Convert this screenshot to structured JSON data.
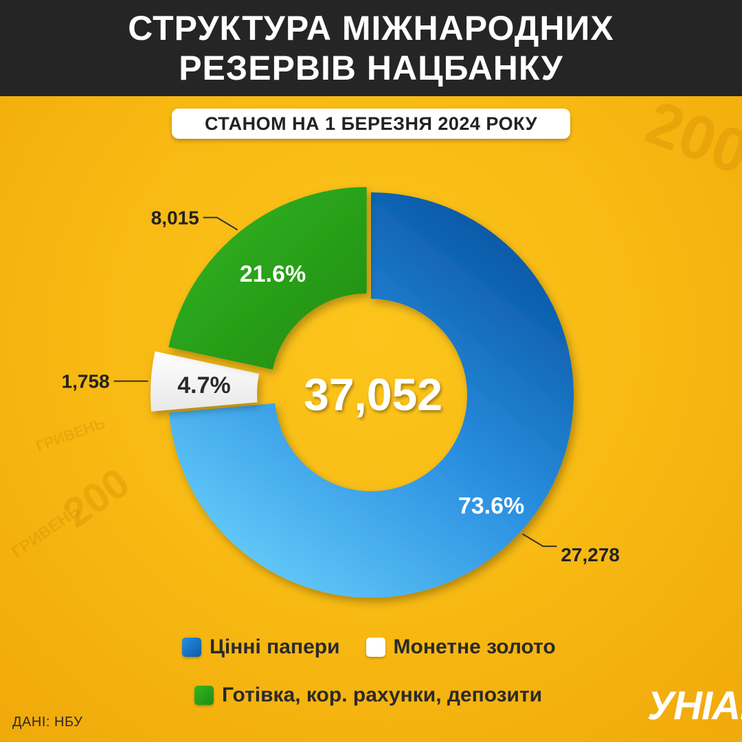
{
  "header": {
    "title_line1": "СТРУКТУРА МІЖНАРОДНИХ",
    "title_line2": "РЕЗЕРВІВ НАЦБАНКУ",
    "subtitle": "СТАНОМ НА 1 БЕРЕЗНЯ 2024 РОКУ"
  },
  "chart_data": {
    "type": "pie",
    "subtype": "donut",
    "total": "37,052",
    "series": [
      {
        "name": "Цінні папери",
        "value": 27278,
        "value_label": "27,278",
        "percent_label": "73.6%",
        "color": "#1d6fbd"
      },
      {
        "name": "Монетне золото",
        "value": 1758,
        "value_label": "1,758",
        "percent_label": "4.7%",
        "color": "#ffffff"
      },
      {
        "name": "Готівка, кор. рахунки, депозити",
        "value": 8015,
        "value_label": "8,015",
        "percent_label": "21.6%",
        "color": "#2ca81b"
      }
    ]
  },
  "legend": {
    "row1": [
      {
        "label": "Цінні папери",
        "color": "#1c74c8"
      },
      {
        "label": "Монетне золото",
        "color": "#ffffff"
      }
    ],
    "row2": [
      {
        "label": "Готівка, кор. рахунки, депозити",
        "color": "#2ca81b"
      }
    ]
  },
  "footer": {
    "source": "ДАНІ: НБУ",
    "logo": "УНІАН"
  },
  "background": {
    "decor_200": "200",
    "decor_hryven": "ГРИВЕНЬ"
  }
}
